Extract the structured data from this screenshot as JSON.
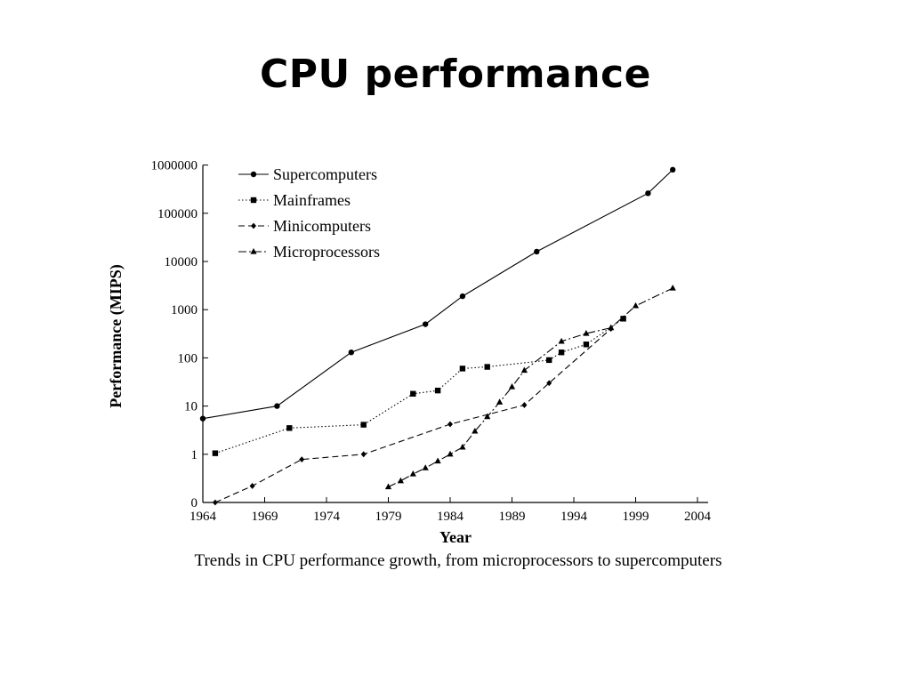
{
  "slide": {
    "title": "CPU performance",
    "caption": "Trends in CPU performance growth, from microprocessors to supercomputers"
  },
  "chart_data": {
    "type": "line",
    "title": "",
    "xlabel": "Year",
    "ylabel": "Performance (MIPS)",
    "xlim": [
      1964,
      2004
    ],
    "x_ticks": [
      1964,
      1969,
      1974,
      1979,
      1984,
      1989,
      1994,
      1999,
      2004
    ],
    "y_scale": "log",
    "y_tick_labels": [
      "0",
      "1",
      "10",
      "100",
      "1000",
      "10000",
      "100000",
      "1000000"
    ],
    "grid": false,
    "legend_position": "top-left",
    "series": [
      {
        "name": "Supercomputers",
        "line_style": "solid",
        "marker": "circle",
        "points": [
          [
            1964,
            5.5
          ],
          [
            1970,
            10
          ],
          [
            1976,
            130
          ],
          [
            1982,
            500
          ],
          [
            1985,
            1900
          ],
          [
            1991,
            16000
          ],
          [
            2000,
            260000
          ],
          [
            2002,
            800000
          ]
        ]
      },
      {
        "name": "Mainframes",
        "line_style": "dotted",
        "marker": "square",
        "points": [
          [
            1965,
            1.05
          ],
          [
            1971,
            3.5
          ],
          [
            1977,
            4.1
          ],
          [
            1981,
            18
          ],
          [
            1983,
            21
          ],
          [
            1985,
            60
          ],
          [
            1987,
            65
          ],
          [
            1992,
            90
          ],
          [
            1993,
            130
          ],
          [
            1995,
            190
          ],
          [
            1998,
            650
          ]
        ]
      },
      {
        "name": "Minicomputers",
        "line_style": "dashed",
        "marker": "diamond",
        "points": [
          [
            1965,
            0.1
          ],
          [
            1968,
            0.22
          ],
          [
            1972,
            0.78
          ],
          [
            1977,
            1.0
          ],
          [
            1984,
            4.2
          ],
          [
            1990,
            10.5
          ],
          [
            1992,
            30
          ],
          [
            1997,
            400
          ]
        ]
      },
      {
        "name": "Microprocessors",
        "line_style": "dash-dot",
        "marker": "triangle",
        "points": [
          [
            1979,
            0.21
          ],
          [
            1980,
            0.28
          ],
          [
            1981,
            0.39
          ],
          [
            1982,
            0.52
          ],
          [
            1983,
            0.72
          ],
          [
            1984,
            1.0
          ],
          [
            1985,
            1.4
          ],
          [
            1986,
            3.0
          ],
          [
            1987,
            6.0
          ],
          [
            1988,
            12
          ],
          [
            1989,
            25
          ],
          [
            1990,
            55
          ],
          [
            1993,
            220
          ],
          [
            1995,
            320
          ],
          [
            1997,
            420
          ],
          [
            1999,
            1200
          ],
          [
            2002,
            2800
          ]
        ]
      }
    ]
  }
}
